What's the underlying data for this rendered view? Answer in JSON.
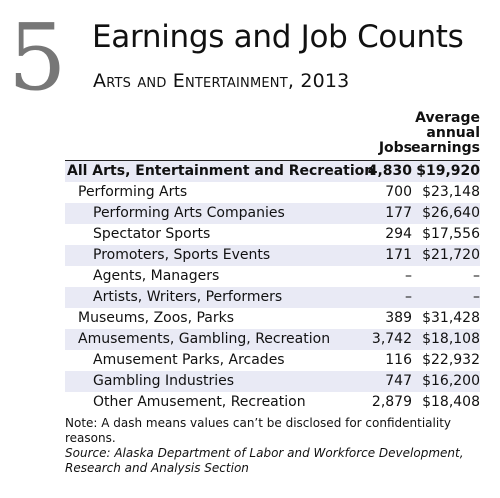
{
  "figure_number": "5",
  "title": "Earnings and Job Counts",
  "subtitle": "Arts and Entertainment, 2013",
  "columns": {
    "jobs": "Jobs",
    "earnings_lines": [
      "Average",
      "annual",
      "earnings"
    ]
  },
  "rows": [
    {
      "label": "All Arts, Entertainment and Recreation",
      "jobs": "4,830",
      "earnings": "$19,920",
      "level": 0,
      "total": true
    },
    {
      "label": "Performing Arts",
      "jobs": "700",
      "earnings": "$23,148",
      "level": 1
    },
    {
      "label": "Performing Arts Companies",
      "jobs": "177",
      "earnings": "$26,640",
      "level": 2
    },
    {
      "label": "Spectator Sports",
      "jobs": "294",
      "earnings": "$17,556",
      "level": 2
    },
    {
      "label": "Promoters, Sports Events",
      "jobs": "171",
      "earnings": "$21,720",
      "level": 2
    },
    {
      "label": "Agents, Managers",
      "jobs": "–",
      "earnings": "–",
      "level": 2
    },
    {
      "label": "Artists, Writers, Performers",
      "jobs": "–",
      "earnings": "–",
      "level": 2
    },
    {
      "label": "Museums, Zoos, Parks",
      "jobs": "389",
      "earnings": "$31,428",
      "level": 1
    },
    {
      "label": "Amusements, Gambling, Recreation",
      "jobs": "3,742",
      "earnings": "$18,108",
      "level": 1
    },
    {
      "label": "Amusement Parks, Arcades",
      "jobs": "116",
      "earnings": "$22,932",
      "level": 2
    },
    {
      "label": "Gambling Industries",
      "jobs": "747",
      "earnings": "$16,200",
      "level": 2
    },
    {
      "label": "Other Amusement, Recreation",
      "jobs": "2,879",
      "earnings": "$18,408",
      "level": 2
    }
  ],
  "note": "Note: A dash means values can’t be disclosed for confidentiality reasons.",
  "source": "Source: Alaska Department of Labor and Workforce Development, Research and Analysis Section",
  "colors": {
    "row_shading": "#e9eaf5",
    "figure_number": "#777777"
  }
}
